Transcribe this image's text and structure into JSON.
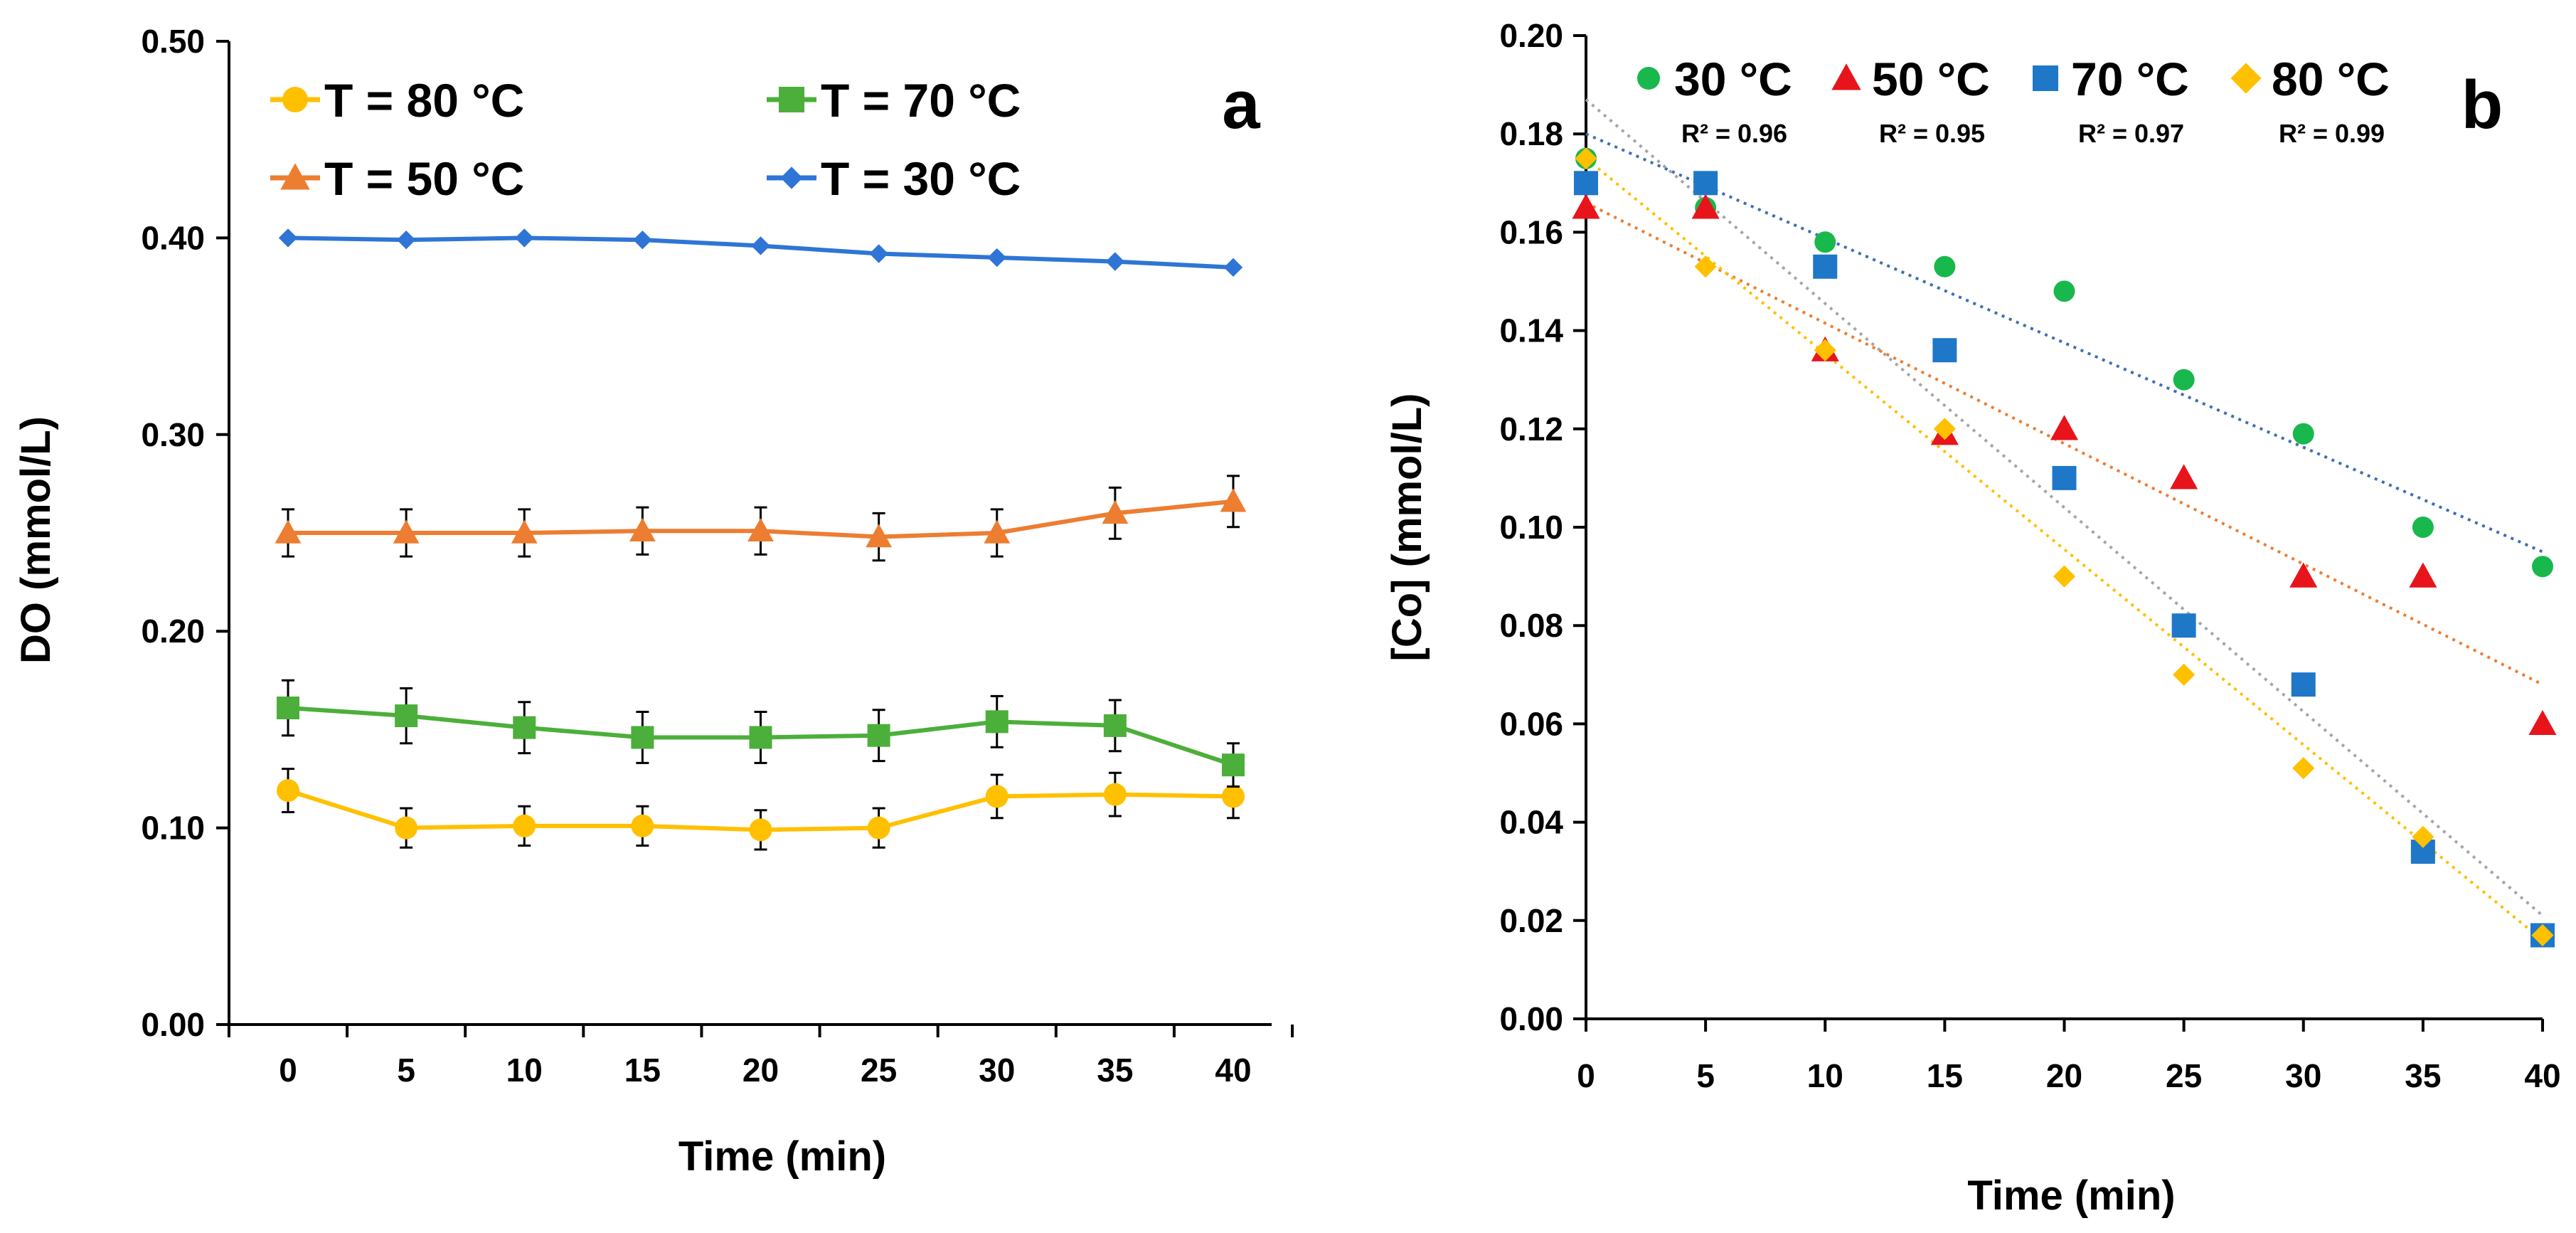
{
  "figure": {
    "panels": [
      "a",
      "b"
    ]
  },
  "chart_data": [
    {
      "panel_label": "a",
      "type": "line",
      "xlabel": "Time (min)",
      "ylabel": "DO (mmol/L)",
      "x": [
        0,
        5,
        10,
        15,
        20,
        25,
        30,
        35,
        40
      ],
      "xticks": [
        "0",
        "5",
        "10",
        "15",
        "20",
        "25",
        "30",
        "35",
        "40"
      ],
      "ylim": [
        0,
        0.5
      ],
      "yticks": [
        "0.00",
        "0.10",
        "0.20",
        "0.30",
        "0.40",
        "0.50"
      ],
      "ytick_values": [
        0,
        0.1,
        0.2,
        0.3,
        0.4,
        0.5
      ],
      "grid": false,
      "legend_position": "top",
      "series": [
        {
          "name": "T = 80 °C",
          "color": "#FFC000",
          "marker": "circle",
          "values": [
            0.119,
            0.1,
            0.101,
            0.101,
            0.099,
            0.1,
            0.116,
            0.117,
            0.116
          ],
          "errors": [
            0.011,
            0.01,
            0.01,
            0.01,
            0.01,
            0.01,
            0.011,
            0.011,
            0.011
          ]
        },
        {
          "name": "T = 70 °C",
          "color": "#4CAF3B",
          "marker": "square",
          "values": [
            0.161,
            0.157,
            0.151,
            0.146,
            0.146,
            0.147,
            0.154,
            0.152,
            0.132
          ],
          "errors": [
            0.014,
            0.014,
            0.013,
            0.013,
            0.013,
            0.013,
            0.013,
            0.013,
            0.011
          ]
        },
        {
          "name": "T = 50 °C",
          "color": "#ED7D31",
          "marker": "triangle",
          "values": [
            0.25,
            0.25,
            0.25,
            0.251,
            0.251,
            0.248,
            0.25,
            0.26,
            0.266
          ],
          "errors": [
            0.012,
            0.012,
            0.012,
            0.012,
            0.012,
            0.012,
            0.012,
            0.013,
            0.013
          ]
        },
        {
          "name": "T = 30 °C",
          "color": "#2E75D6",
          "marker": "diamond",
          "values": [
            0.4,
            0.399,
            0.4,
            0.399,
            0.396,
            0.392,
            0.39,
            0.388,
            0.385
          ],
          "errors": []
        }
      ]
    },
    {
      "panel_label": "b",
      "type": "scatter",
      "xlabel": "Time (min)",
      "ylabel": "[Co] (mmol/L)",
      "x": [
        0,
        5,
        10,
        15,
        20,
        25,
        30,
        35,
        40
      ],
      "xticks": [
        "0",
        "5",
        "10",
        "15",
        "20",
        "25",
        "30",
        "35",
        "40"
      ],
      "ylim": [
        0,
        0.2
      ],
      "yticks": [
        "0.00",
        "0.02",
        "0.04",
        "0.06",
        "0.08",
        "0.10",
        "0.12",
        "0.14",
        "0.16",
        "0.18",
        "0.20"
      ],
      "ytick_values": [
        0,
        0.02,
        0.04,
        0.06,
        0.08,
        0.1,
        0.12,
        0.14,
        0.16,
        0.18,
        0.2
      ],
      "grid": false,
      "legend_position": "top",
      "series": [
        {
          "name": "30 °C",
          "r2": "R² = 0.96",
          "color": "#19B84C",
          "marker": "circle",
          "values": [
            0.175,
            0.165,
            0.158,
            0.153,
            0.148,
            0.13,
            0.119,
            0.1,
            0.092
          ],
          "trend": [
            0.18,
            0.095
          ],
          "trend_color": "#3D6FB4"
        },
        {
          "name": "50 °C",
          "r2": "R² = 0.95",
          "color": "#E8141C",
          "marker": "triangle",
          "values": [
            0.165,
            0.165,
            0.136,
            0.119,
            0.12,
            0.11,
            0.09,
            0.09,
            0.06
          ],
          "trend": [
            0.166,
            0.068
          ],
          "trend_color": "#ED7D31"
        },
        {
          "name": "70 °C",
          "r2": "R² = 0.97",
          "color": "#1F77C8",
          "marker": "square",
          "values": [
            0.17,
            0.17,
            0.153,
            0.136,
            0.11,
            0.08,
            0.068,
            0.034,
            0.017
          ],
          "trend": [
            0.187,
            0.021
          ],
          "trend_color": "#A6A6A6"
        },
        {
          "name": "80 °C",
          "r2": "R² = 0.99",
          "color": "#FFC000",
          "marker": "diamond",
          "values": [
            0.175,
            0.153,
            0.136,
            0.12,
            0.09,
            0.07,
            0.051,
            0.037,
            0.017
          ],
          "trend": [
            0.175,
            0.016
          ],
          "trend_color": "#FFC000"
        }
      ]
    }
  ]
}
